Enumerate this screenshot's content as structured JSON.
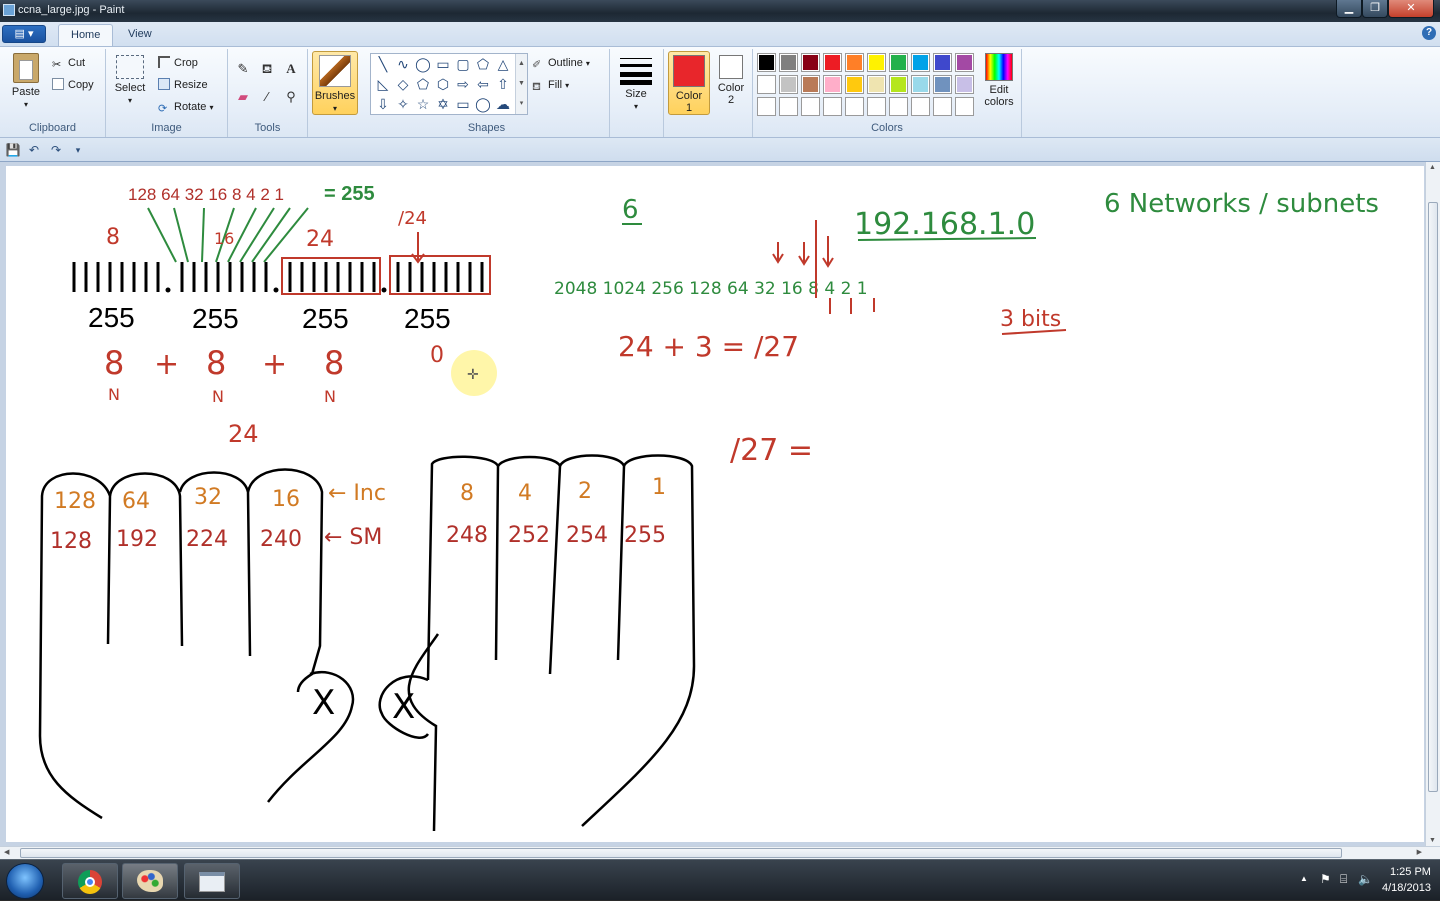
{
  "window": {
    "title": "ccna_large.jpg - Paint"
  },
  "tabs": {
    "app_menu": "▤ ▾",
    "home": "Home",
    "view": "View"
  },
  "ribbon": {
    "clipboard": {
      "label": "Clipboard",
      "paste": "Paste",
      "cut": "Cut",
      "copy": "Copy"
    },
    "image": {
      "label": "Image",
      "select": "Select",
      "crop": "Crop",
      "resize": "Resize",
      "rotate": "Rotate"
    },
    "tools": {
      "label": "Tools"
    },
    "brushes": {
      "label": "Brushes"
    },
    "shapes": {
      "label": "Shapes",
      "outline": "Outline",
      "fill": "Fill"
    },
    "size": {
      "label": "Size"
    },
    "color1": {
      "label1": "Color",
      "label2": "1",
      "value": "#e8262b"
    },
    "color2": {
      "label1": "Color",
      "label2": "2",
      "value": "#ffffff"
    },
    "colors": {
      "label": "Colors",
      "edit_label1": "Edit",
      "edit_label2": "colors",
      "row1": [
        "#000000",
        "#7f7f7f",
        "#880015",
        "#ed1c24",
        "#ff7f27",
        "#fff200",
        "#22b14c",
        "#00a2e8",
        "#3f48cc",
        "#a349a4"
      ],
      "row2": [
        "#ffffff",
        "#c3c3c3",
        "#b97a57",
        "#ffaec9",
        "#ffc90e",
        "#efe4b0",
        "#b5e61d",
        "#99d9ea",
        "#7092be",
        "#c8bfe7"
      ],
      "row3": [
        "#ffffff",
        "#ffffff",
        "#ffffff",
        "#ffffff",
        "#ffffff",
        "#ffffff",
        "#ffffff",
        "#ffffff",
        "#ffffff",
        "#ffffff"
      ]
    }
  },
  "canvas": {
    "bit_values": "128 64 32 16 8 4 2 1",
    "sum": "= 255",
    "octet_bits": [
      "8",
      "16",
      "24",
      "/24"
    ],
    "octets": [
      "255",
      "255",
      "255",
      "255"
    ],
    "network_sum": [
      "8",
      "+",
      "8",
      "+",
      "8",
      "0"
    ],
    "n_marks": [
      "N",
      "N",
      "N"
    ],
    "total": "24",
    "subnets_needed": "6",
    "ip_address": "192.168.1.0",
    "networks_note": "6 Networks / subnets",
    "bit_row": "2048 1024 256 128 64 32 16 8 4 2 1",
    "bits_needed": "3 bits",
    "cidr_calc": "24 + 3 = /27",
    "cidr_eq": "/27 =",
    "increments": [
      "128",
      "64",
      "32",
      "16",
      "8",
      "4",
      "2",
      "1"
    ],
    "subnet_masks": [
      "128",
      "192",
      "224",
      "240",
      "248",
      "252",
      "254",
      "255"
    ],
    "inc_label": "← Inc",
    "sm_label": "← SM",
    "thumb_marks": [
      "X",
      "X"
    ]
  },
  "status": {
    "time": "1:25 PM",
    "date": "4/18/2013"
  }
}
